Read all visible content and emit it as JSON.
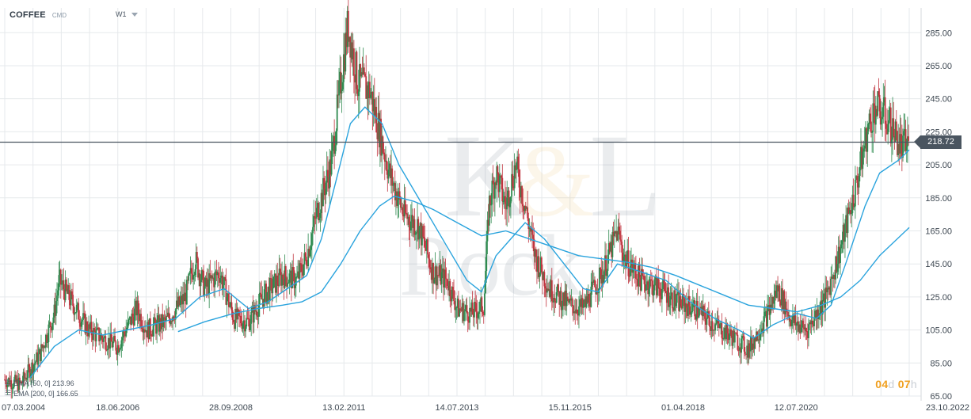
{
  "header": {
    "symbol": "COFFEE",
    "symbol_type": "CMD",
    "timeframe": "W1"
  },
  "indicators": [
    {
      "label": "EMA [50, 0] 213.96",
      "color": "#29a3dd"
    },
    {
      "label": "EMA [200, 0] 166.65",
      "color": "#29a3dd"
    }
  ],
  "timer": {
    "days": "04",
    "days_unit": "d",
    "hours": "07",
    "hours_unit": "h"
  },
  "current_price": "218.72",
  "colors": {
    "up": "#2e8a4f",
    "down": "#c0343f",
    "ema": "#29a3dd",
    "grid": "#e6e9ec",
    "price_line": "#4a5560"
  },
  "watermark": "K&L Rock",
  "chart_data": {
    "type": "candlestick",
    "ylim": [
      65,
      300
    ],
    "y_ticks": [
      "285.00",
      "265.00",
      "245.00",
      "225.00",
      "205.00",
      "185.00",
      "165.00",
      "145.00",
      "125.00",
      "105.00",
      "85.00",
      "65.00"
    ],
    "x_ticks": [
      "07.03.2004",
      "18.06.2006",
      "28.09.2008",
      "13.02.2011",
      "14.07.2013",
      "15.11.2015",
      "01.04.2018",
      "12.07.2020",
      "23.10.2022"
    ],
    "x_range_years": [
      2004.18,
      2022.81
    ],
    "horizontal_line": 218.72,
    "price_path": [
      [
        2004.18,
        75
      ],
      [
        2004.5,
        72
      ],
      [
        2004.9,
        90
      ],
      [
        2005.2,
        115
      ],
      [
        2005.3,
        135
      ],
      [
        2005.6,
        120
      ],
      [
        2005.9,
        105
      ],
      [
        2006.2,
        100
      ],
      [
        2006.5,
        95
      ],
      [
        2006.9,
        118
      ],
      [
        2007.1,
        105
      ],
      [
        2007.5,
        110
      ],
      [
        2007.9,
        125
      ],
      [
        2008.1,
        148
      ],
      [
        2008.3,
        130
      ],
      [
        2008.6,
        140
      ],
      [
        2008.9,
        112
      ],
      [
        2009.2,
        110
      ],
      [
        2009.5,
        125
      ],
      [
        2009.9,
        138
      ],
      [
        2010.2,
        135
      ],
      [
        2010.4,
        150
      ],
      [
        2010.6,
        175
      ],
      [
        2010.9,
        205
      ],
      [
        2011.1,
        255
      ],
      [
        2011.25,
        290
      ],
      [
        2011.45,
        255
      ],
      [
        2011.7,
        250
      ],
      [
        2011.9,
        225
      ],
      [
        2012.1,
        200
      ],
      [
        2012.4,
        175
      ],
      [
        2012.7,
        168
      ],
      [
        2013.0,
        140
      ],
      [
        2013.3,
        135
      ],
      [
        2013.5,
        118
      ],
      [
        2013.8,
        115
      ],
      [
        2014.05,
        120
      ],
      [
        2014.15,
        180
      ],
      [
        2014.3,
        200
      ],
      [
        2014.5,
        180
      ],
      [
        2014.7,
        205
      ],
      [
        2014.9,
        180
      ],
      [
        2015.1,
        150
      ],
      [
        2015.4,
        130
      ],
      [
        2015.8,
        120
      ],
      [
        2016.1,
        118
      ],
      [
        2016.5,
        140
      ],
      [
        2016.8,
        165
      ],
      [
        2016.95,
        148
      ],
      [
        2017.3,
        135
      ],
      [
        2017.7,
        130
      ],
      [
        2018.0,
        122
      ],
      [
        2018.4,
        118
      ],
      [
        2018.8,
        108
      ],
      [
        2019.2,
        100
      ],
      [
        2019.5,
        93
      ],
      [
        2019.9,
        115
      ],
      [
        2020.1,
        130
      ],
      [
        2020.4,
        110
      ],
      [
        2020.7,
        105
      ],
      [
        2020.9,
        115
      ],
      [
        2021.1,
        125
      ],
      [
        2021.4,
        155
      ],
      [
        2021.7,
        190
      ],
      [
        2021.95,
        225
      ],
      [
        2022.1,
        240
      ],
      [
        2022.3,
        235
      ],
      [
        2022.5,
        225
      ],
      [
        2022.65,
        215
      ],
      [
        2022.81,
        219
      ]
    ],
    "ema50_path": [
      [
        2004.7,
        76
      ],
      [
        2005.2,
        95
      ],
      [
        2005.7,
        105
      ],
      [
        2006.2,
        102
      ],
      [
        2006.7,
        105
      ],
      [
        2007.2,
        108
      ],
      [
        2007.7,
        112
      ],
      [
        2008.2,
        125
      ],
      [
        2008.7,
        130
      ],
      [
        2009.2,
        118
      ],
      [
        2009.6,
        122
      ],
      [
        2010.0,
        130
      ],
      [
        2010.4,
        138
      ],
      [
        2010.7,
        160
      ],
      [
        2011.0,
        195
      ],
      [
        2011.3,
        230
      ],
      [
        2011.6,
        240
      ],
      [
        2011.95,
        230
      ],
      [
        2012.3,
        205
      ],
      [
        2012.8,
        180
      ],
      [
        2013.3,
        155
      ],
      [
        2013.7,
        135
      ],
      [
        2014.0,
        128
      ],
      [
        2014.3,
        150
      ],
      [
        2014.6,
        160
      ],
      [
        2014.9,
        170
      ],
      [
        2015.3,
        160
      ],
      [
        2015.7,
        145
      ],
      [
        2016.1,
        130
      ],
      [
        2016.4,
        128
      ],
      [
        2016.8,
        145
      ],
      [
        2017.3,
        140
      ],
      [
        2017.8,
        135
      ],
      [
        2018.3,
        122
      ],
      [
        2018.8,
        112
      ],
      [
        2019.3,
        105
      ],
      [
        2019.6,
        100
      ],
      [
        2020.0,
        108
      ],
      [
        2020.5,
        115
      ],
      [
        2020.9,
        112
      ],
      [
        2021.2,
        120
      ],
      [
        2021.5,
        145
      ],
      [
        2021.9,
        180
      ],
      [
        2022.2,
        200
      ],
      [
        2022.6,
        208
      ],
      [
        2022.81,
        214
      ]
    ],
    "ema200_path": [
      [
        2007.75,
        104
      ],
      [
        2008.3,
        110
      ],
      [
        2008.9,
        115
      ],
      [
        2009.4,
        118
      ],
      [
        2009.9,
        120
      ],
      [
        2010.3,
        122
      ],
      [
        2010.7,
        128
      ],
      [
        2011.1,
        145
      ],
      [
        2011.5,
        165
      ],
      [
        2011.9,
        180
      ],
      [
        2012.2,
        186
      ],
      [
        2012.6,
        183
      ],
      [
        2013.0,
        178
      ],
      [
        2013.5,
        170
      ],
      [
        2014.0,
        162
      ],
      [
        2014.5,
        165
      ],
      [
        2015.0,
        160
      ],
      [
        2015.5,
        155
      ],
      [
        2016.0,
        150
      ],
      [
        2016.5,
        148
      ],
      [
        2017.0,
        146
      ],
      [
        2017.5,
        143
      ],
      [
        2018.0,
        138
      ],
      [
        2018.5,
        132
      ],
      [
        2019.0,
        126
      ],
      [
        2019.5,
        120
      ],
      [
        2020.0,
        118
      ],
      [
        2020.5,
        116
      ],
      [
        2021.0,
        120
      ],
      [
        2021.4,
        125
      ],
      [
        2021.8,
        135
      ],
      [
        2022.2,
        150
      ],
      [
        2022.81,
        167
      ]
    ]
  }
}
